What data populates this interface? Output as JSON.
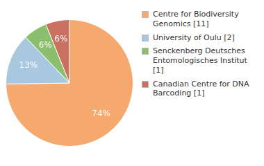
{
  "chart_data": {
    "type": "pie",
    "categories": [
      "Centre for Biodiversity\nGenomics [11]",
      "University of Oulu [2]",
      "Senckenberg Deutsches\nEntomologisches Institut [1]",
      "Canadian Centre for DNA\nBarcoding [1]"
    ],
    "values": [
      74,
      13,
      6,
      6
    ],
    "value_labels": [
      "74%",
      "13%",
      "6%",
      "6%"
    ],
    "colors": [
      "#F5A96E",
      "#A8C8E0",
      "#8BBF6E",
      "#C97060"
    ],
    "data_labels": true,
    "legend": "right"
  }
}
